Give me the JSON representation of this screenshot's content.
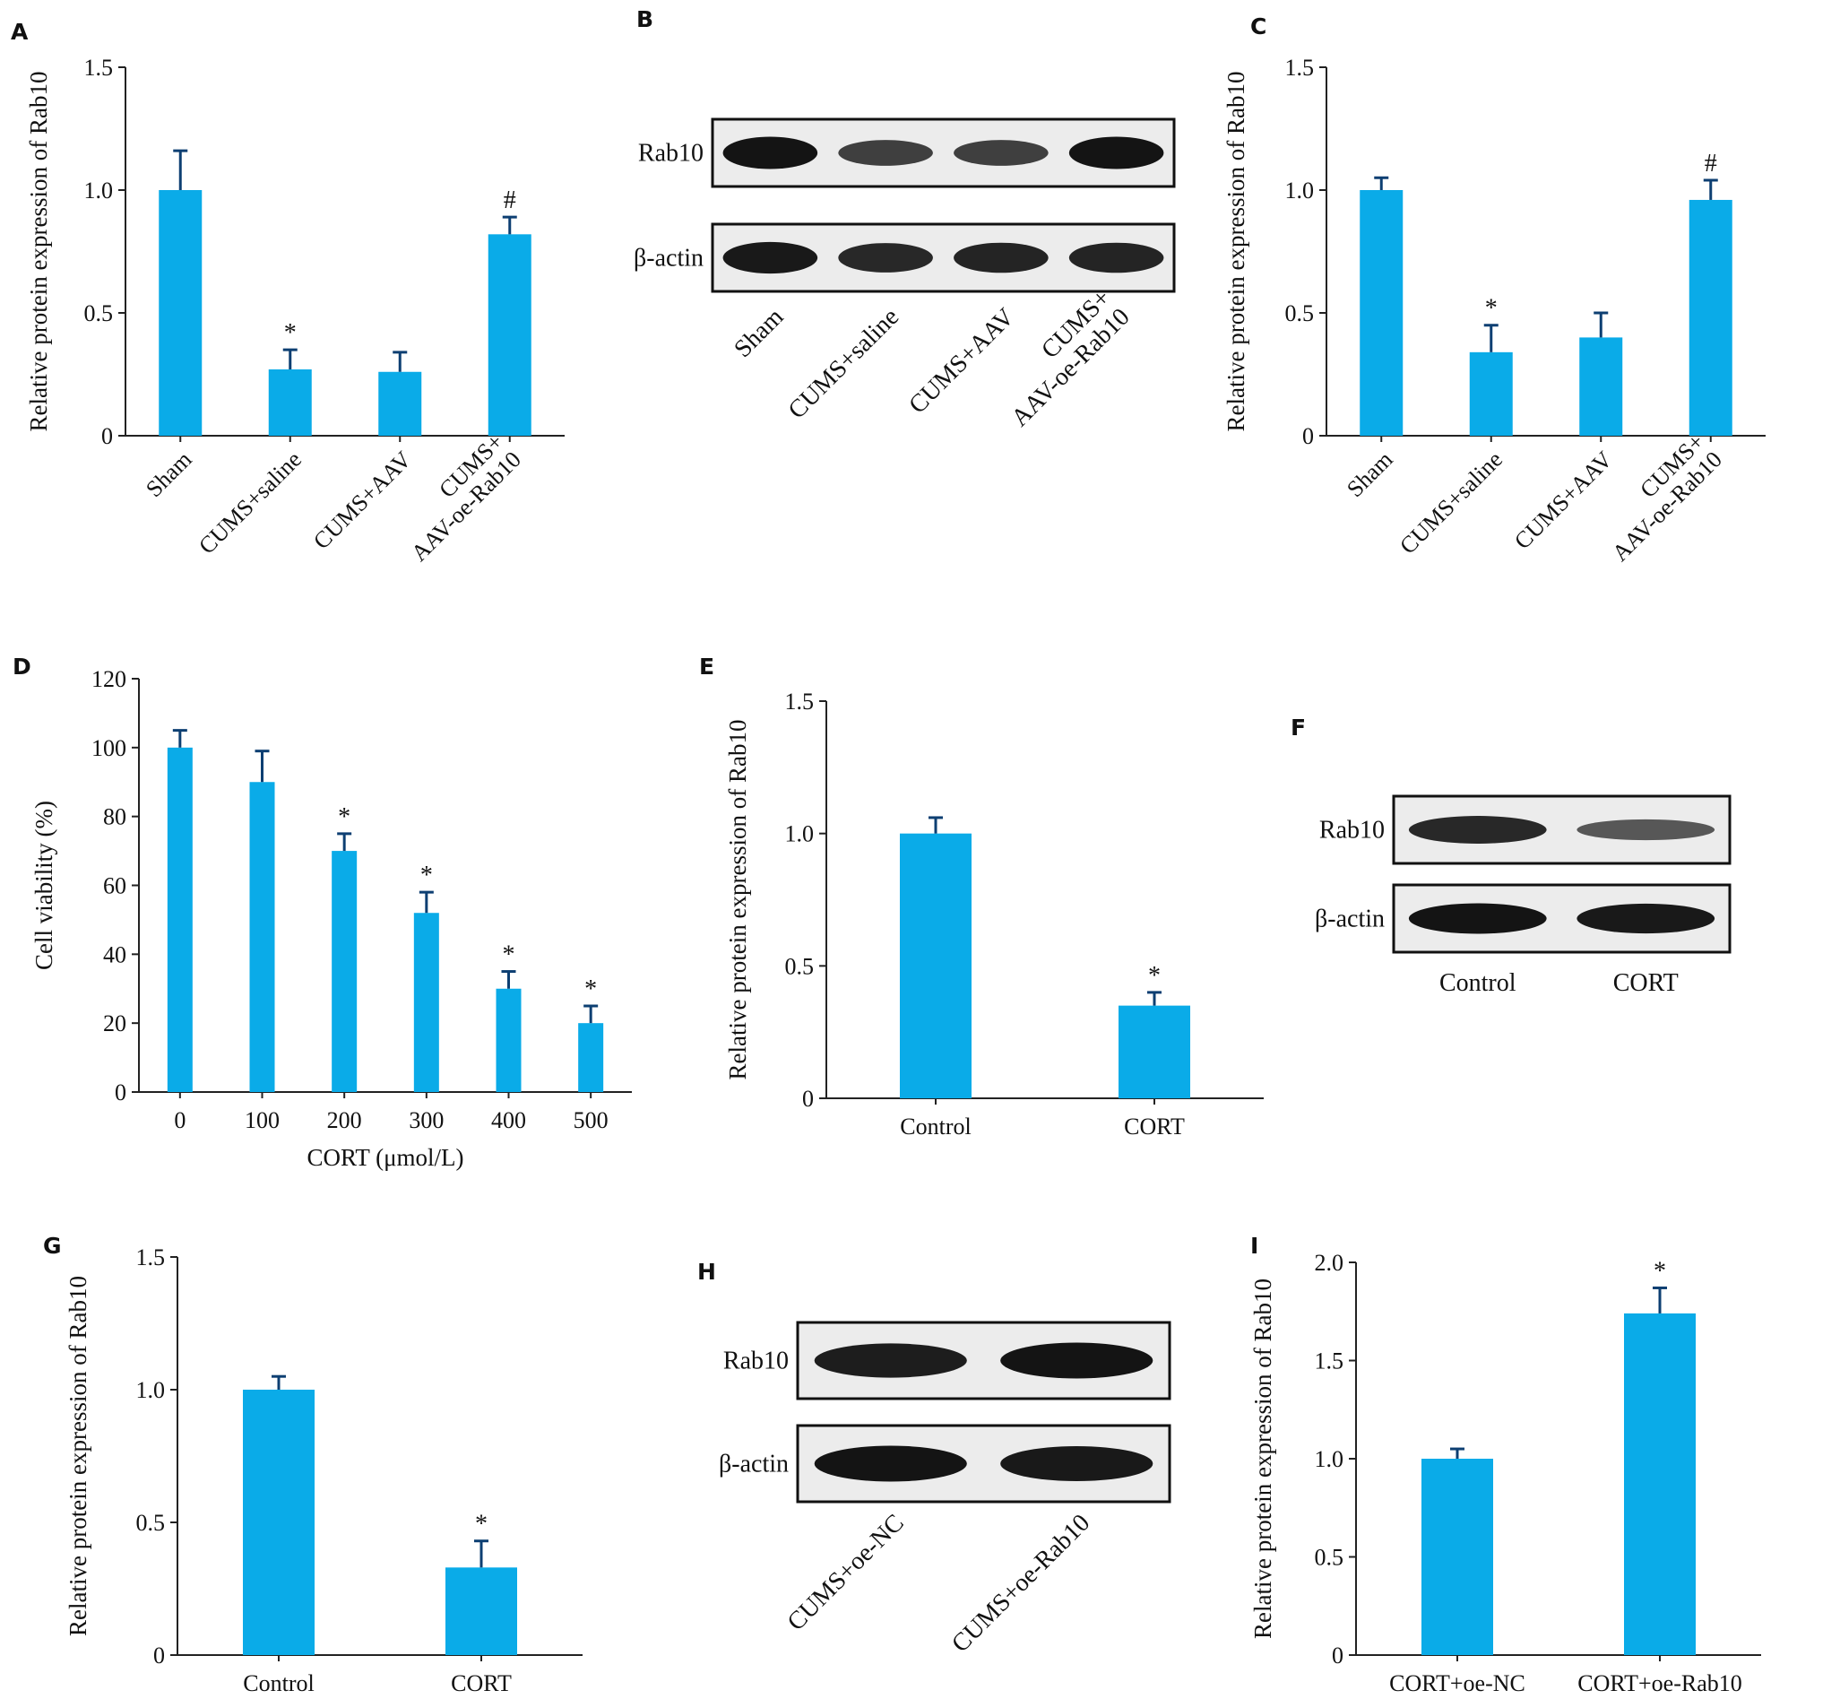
{
  "figure": {
    "bar_color": "#0aabe8",
    "error_bar_color": "#0d3f72",
    "band_color": "#141414"
  },
  "chart_data": [
    {
      "id": "A",
      "letter": "A",
      "type": "bar",
      "categories": [
        "Sham",
        "CUMS+saline",
        "CUMS+AAV",
        "CUMS+\nAAV-oe-Rab10"
      ],
      "values": [
        1.0,
        0.27,
        0.26,
        0.82
      ],
      "errors": [
        0.16,
        0.08,
        0.08,
        0.07
      ],
      "annotations": [
        "",
        "*",
        "",
        "#"
      ],
      "ylabel": "Relative protein expression of Rab10",
      "xlabel": "",
      "ylim": [
        0,
        1.5
      ],
      "yticks": [
        "0",
        "0.5",
        "1.0",
        "1.5"
      ],
      "ytick_values": [
        0,
        0.5,
        1.0,
        1.5
      ],
      "xlabel_rotation": -45
    },
    {
      "id": "C",
      "letter": "C",
      "type": "bar",
      "categories": [
        "Sham",
        "CUMS+saline",
        "CUMS+AAV",
        "CUMS+\nAAV-oe-Rab10"
      ],
      "values": [
        1.0,
        0.34,
        0.4,
        0.96
      ],
      "errors": [
        0.05,
        0.11,
        0.1,
        0.08
      ],
      "annotations": [
        "",
        "*",
        "",
        "#"
      ],
      "ylabel": "Relative protein expression of Rab10",
      "xlabel": "",
      "ylim": [
        0,
        1.5
      ],
      "yticks": [
        "0",
        "0.5",
        "1.0",
        "1.5"
      ],
      "ytick_values": [
        0,
        0.5,
        1.0,
        1.5
      ],
      "xlabel_rotation": -45
    },
    {
      "id": "D",
      "letter": "D",
      "type": "bar",
      "categories": [
        "0",
        "100",
        "200",
        "300",
        "400",
        "500"
      ],
      "values": [
        100,
        90,
        70,
        52,
        30,
        20
      ],
      "errors": [
        5,
        9,
        5,
        6,
        5,
        5
      ],
      "annotations": [
        "",
        "",
        "*",
        "*",
        "*",
        "*"
      ],
      "ylabel": "Cell viability (%)",
      "xlabel": "CORT (μmol/L)",
      "ylim": [
        0,
        120
      ],
      "yticks": [
        "0",
        "20",
        "40",
        "60",
        "80",
        "100",
        "120"
      ],
      "ytick_values": [
        0,
        20,
        40,
        60,
        80,
        100,
        120
      ],
      "xlabel_rotation": 0
    },
    {
      "id": "E",
      "letter": "E",
      "type": "bar",
      "categories": [
        "Control",
        "CORT"
      ],
      "values": [
        1.0,
        0.35
      ],
      "errors": [
        0.06,
        0.05
      ],
      "annotations": [
        "",
        "*"
      ],
      "ylabel": "Relative protein expression of Rab10",
      "xlabel": "",
      "ylim": [
        0,
        1.5
      ],
      "yticks": [
        "0",
        "0.5",
        "1.0",
        "1.5"
      ],
      "ytick_values": [
        0,
        0.5,
        1.0,
        1.5
      ],
      "xlabel_rotation": 0
    },
    {
      "id": "G",
      "letter": "G",
      "type": "bar",
      "categories": [
        "Control",
        "CORT"
      ],
      "values": [
        1.0,
        0.33
      ],
      "errors": [
        0.05,
        0.1
      ],
      "annotations": [
        "",
        "*"
      ],
      "ylabel": "Relative protein expression of Rab10",
      "xlabel": "",
      "ylim": [
        0,
        1.5
      ],
      "yticks": [
        "0",
        "0.5",
        "1.0",
        "1.5"
      ],
      "ytick_values": [
        0,
        0.5,
        1.0,
        1.5
      ],
      "xlabel_rotation": 0
    },
    {
      "id": "I",
      "letter": "I",
      "type": "bar",
      "categories": [
        "CORT+oe-NC",
        "CORT+oe-Rab10"
      ],
      "values": [
        1.0,
        1.74
      ],
      "errors": [
        0.05,
        0.13
      ],
      "annotations": [
        "",
        "*"
      ],
      "ylabel": "Relative protein expression of Rab10",
      "xlabel": "",
      "ylim": [
        0,
        2.0
      ],
      "yticks": [
        "0",
        "0.5",
        "1.0",
        "1.5",
        "2.0"
      ],
      "ytick_values": [
        0,
        0.5,
        1.0,
        1.5,
        2.0
      ],
      "xlabel_rotation": 0
    }
  ],
  "blots": [
    {
      "id": "B",
      "letter": "B",
      "rows": [
        "Rab10",
        "β-actin"
      ],
      "lanes": [
        "Sham",
        "CUMS+saline",
        "CUMS+AAV",
        "CUMS+\nAAV-oe-Rab10"
      ],
      "intensity": [
        [
          1.0,
          0.55,
          0.55,
          1.0
        ],
        [
          0.95,
          0.8,
          0.85,
          0.85
        ]
      ],
      "lane_label_rotation": -45
    },
    {
      "id": "F",
      "letter": "F",
      "rows": [
        "Rab10",
        "β-actin"
      ],
      "lanes": [
        "Control",
        "CORT"
      ],
      "intensity": [
        [
          0.8,
          0.3
        ],
        [
          1.0,
          0.95
        ]
      ],
      "lane_label_rotation": 0
    },
    {
      "id": "H",
      "letter": "H",
      "rows": [
        "Rab10",
        "β-actin"
      ],
      "lanes": [
        "CUMS+oe-NC",
        "CUMS+oe-Rab10"
      ],
      "intensity": [
        [
          0.9,
          1.0
        ],
        [
          1.0,
          0.95
        ]
      ],
      "lane_label_rotation": -45
    }
  ]
}
